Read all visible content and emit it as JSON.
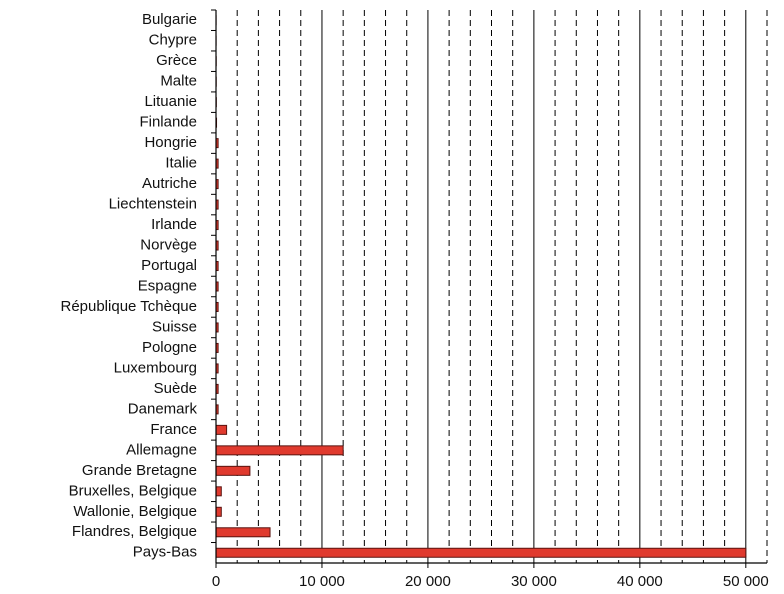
{
  "chart_data": {
    "type": "barh",
    "categories": [
      "Bulgarie",
      "Chypre",
      "Grèce",
      "Malte",
      "Lituanie",
      "Finlande",
      "Hongrie",
      "Italie",
      "Autriche",
      "Liechtenstein",
      "Irlande",
      "Norvège",
      "Portugal",
      "Espagne",
      "République Tchèque",
      "Suisse",
      "Pologne",
      "Luxembourg",
      "Suède",
      "Danemark",
      "France",
      "Allemagne",
      "Grande Bretagne",
      "Bruxelles, Belgique",
      "Wallonie, Belgique",
      "Flandres, Belgique",
      "Pays-Bas"
    ],
    "values": [
      10,
      10,
      20,
      20,
      30,
      50,
      200,
      200,
      200,
      200,
      200,
      200,
      200,
      200,
      200,
      200,
      200,
      200,
      200,
      200,
      1000,
      12000,
      3200,
      500,
      500,
      5100,
      50000
    ],
    "color": "#e03a2e",
    "xlim": [
      0,
      52000
    ],
    "xticks": [
      0,
      {
        "value": 10000,
        "label": "10 000"
      },
      {
        "value": 20000,
        "label": "20 000"
      },
      {
        "value": 30000,
        "label": "30 000"
      },
      {
        "value": 40000,
        "label": "40 000"
      },
      {
        "value": 50000,
        "label": "50 000"
      }
    ],
    "xminorticks": [
      2000,
      4000,
      6000,
      8000,
      12000,
      14000,
      16000,
      18000,
      22000,
      24000,
      26000,
      28000,
      32000,
      34000,
      36000,
      38000,
      42000,
      44000,
      46000,
      48000,
      52000
    ],
    "grid": true
  }
}
